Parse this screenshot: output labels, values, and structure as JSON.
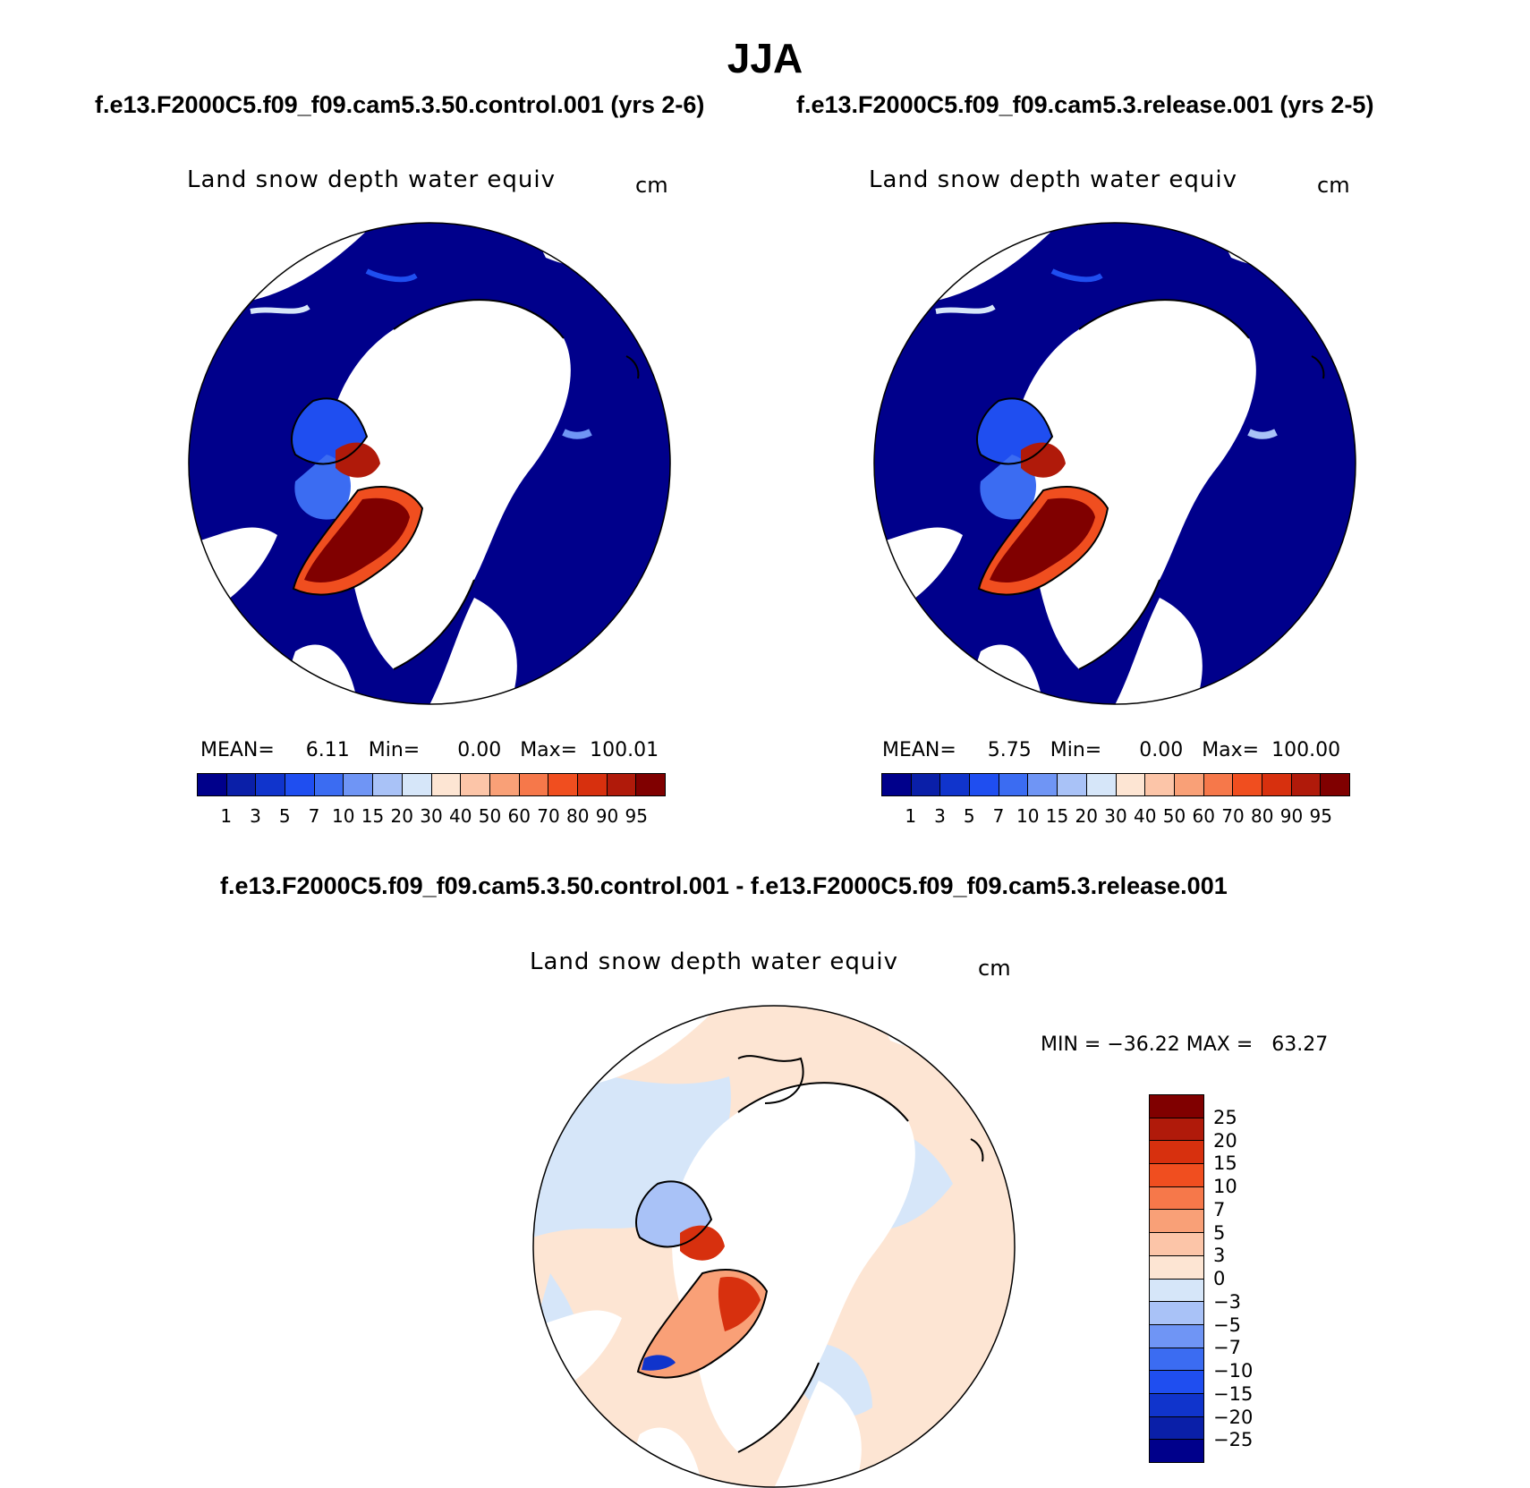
{
  "title": "JJA",
  "panels": [
    {
      "subtitle": "f.e13.F2000C5.f09_f09.cam5.3.50.control.001 (yrs 2-6)",
      "plot_title": "Land snow depth water equiv",
      "units": "cm",
      "stats": {
        "mean_label": "MEAN=",
        "mean": "6.11",
        "min_label": "Min=",
        "min": "0.00",
        "max_label": "Max=",
        "max": "100.01"
      }
    },
    {
      "subtitle": "f.e13.F2000C5.f09_f09.cam5.3.release.001 (yrs 2-5)",
      "plot_title": "Land snow depth water equiv",
      "units": "cm",
      "stats": {
        "mean_label": "MEAN=",
        "mean": "5.75",
        "min_label": "Min=",
        "min": "0.00",
        "max_label": "Max=",
        "max": "100.00"
      }
    }
  ],
  "diff_panel": {
    "subtitle": "f.e13.F2000C5.f09_f09.cam5.3.50.control.001 - f.e13.F2000C5.f09_f09.cam5.3.release.001",
    "plot_title": "Land snow depth water equiv",
    "units": "cm",
    "minmax": "MIN = −36.22 MAX =   63.27"
  },
  "colorbar_top": {
    "labels": [
      "1",
      "3",
      "5",
      "7",
      "10",
      "15",
      "20",
      "30",
      "40",
      "50",
      "60",
      "70",
      "80",
      "90",
      "95"
    ],
    "colors": [
      "#00008b",
      "#0a1fa8",
      "#1034cc",
      "#1f4ef0",
      "#3b6cf2",
      "#6f95f5",
      "#a9c2f7",
      "#d6e6f9",
      "#fde5d3",
      "#fcc5a8",
      "#f9a077",
      "#f6784a",
      "#f04e1f",
      "#d7300e",
      "#b01a0a",
      "#800000"
    ]
  },
  "colorbar_diff": {
    "labels": [
      "25",
      "20",
      "15",
      "10",
      "7",
      "5",
      "3",
      "0",
      "−3",
      "−5",
      "−7",
      "−10",
      "−15",
      "−20",
      "−25"
    ],
    "colors": [
      "#800000",
      "#b01a0a",
      "#d7300e",
      "#f04e1f",
      "#f6784a",
      "#f9a077",
      "#fcc5a8",
      "#fde5d3",
      "#d6e6f9",
      "#a9c2f7",
      "#6f95f5",
      "#3b6cf2",
      "#1f4ef0",
      "#1034cc",
      "#0a1fa8",
      "#00008b"
    ]
  },
  "map_colors": {
    "snow_deep": "#00008b",
    "snow_mid": "#1f4ef0",
    "greenland": "#800000",
    "greenland_edge": "#f04e1f",
    "diff_pos": "#fde5d3",
    "diff_neg": "#d6e6f9"
  }
}
